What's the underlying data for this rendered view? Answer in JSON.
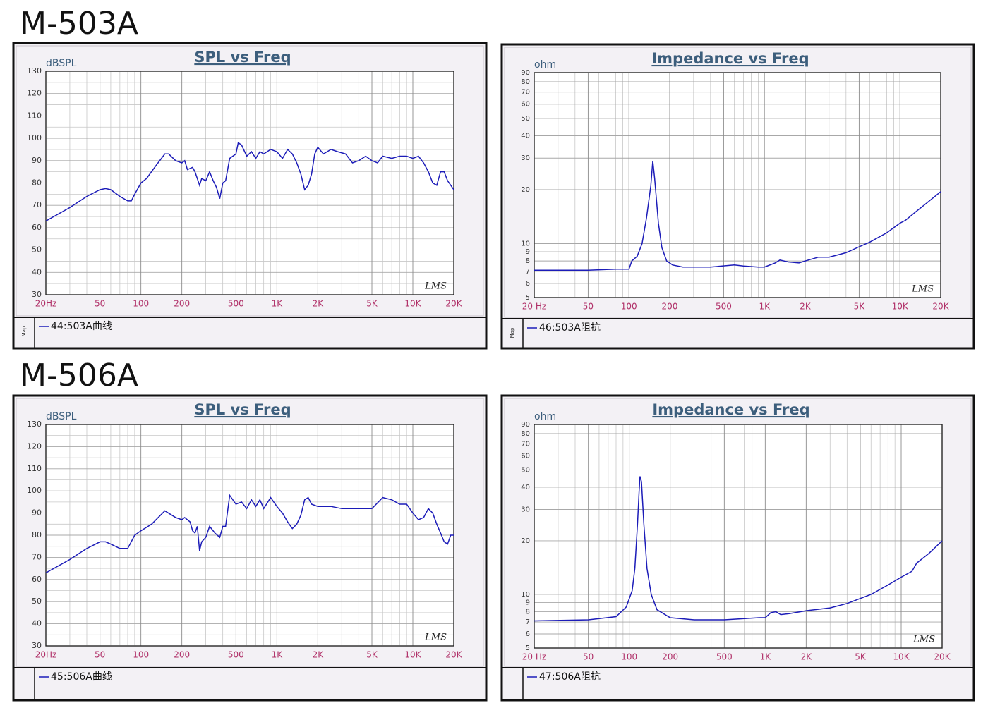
{
  "headings": [
    "M-503A",
    "M-506A"
  ],
  "chart_data": [
    {
      "type": "line",
      "title": "SPL vs Freq",
      "y_label": "dBSPL",
      "watermark": "LMS",
      "legend_tag": "Map",
      "x_scale": "log",
      "y_scale": "linear",
      "grid": true,
      "xlim": [
        20,
        20000
      ],
      "ylim": [
        30,
        130
      ],
      "xticks": [
        {
          "value": 20,
          "label": "20Hz"
        },
        50,
        100,
        200,
        500,
        {
          "value": 1000,
          "label": "1K"
        },
        {
          "value": 2000,
          "label": "2K"
        },
        {
          "value": 5000,
          "label": "5K"
        },
        {
          "value": 10000,
          "label": "10K"
        },
        {
          "value": 20000,
          "label": "20K"
        }
      ],
      "xgrid": [
        30,
        40,
        60,
        70,
        80,
        90,
        300,
        400,
        600,
        700,
        800,
        900,
        3000,
        4000,
        6000,
        7000,
        8000,
        9000
      ],
      "yticks": [
        30,
        40,
        50,
        60,
        70,
        80,
        90,
        100,
        110,
        120,
        130
      ],
      "ygrid": [
        35,
        45,
        55,
        65,
        75,
        85,
        95,
        105,
        115,
        125
      ],
      "x": [
        20,
        30,
        40,
        50,
        55,
        60,
        70,
        80,
        85,
        90,
        100,
        110,
        130,
        150,
        160,
        180,
        200,
        210,
        220,
        240,
        250,
        270,
        280,
        300,
        320,
        340,
        360,
        380,
        400,
        420,
        450,
        500,
        520,
        550,
        600,
        650,
        700,
        750,
        800,
        900,
        1000,
        1100,
        1200,
        1300,
        1400,
        1500,
        1600,
        1700,
        1800,
        1900,
        2000,
        2200,
        2500,
        2800,
        3200,
        3600,
        4000,
        4500,
        5000,
        5500,
        6000,
        7000,
        8000,
        9000,
        10000,
        11000,
        12000,
        13000,
        14000,
        15000,
        16000,
        17000,
        18000,
        19000,
        20000
      ],
      "series": [
        {
          "name": "44:503A曲线",
          "color": "#1c1cb8",
          "values": [
            63,
            69,
            74,
            77,
            77.5,
            77,
            74,
            72,
            72,
            75,
            80,
            82,
            88,
            93,
            93,
            90,
            89,
            90,
            86,
            87,
            85,
            79,
            82,
            81,
            85,
            81,
            78,
            73,
            80,
            81,
            91,
            93,
            98,
            97,
            92,
            94,
            91,
            94,
            93,
            95,
            94,
            91,
            95,
            93,
            89,
            84,
            77,
            79,
            84,
            93,
            96,
            93,
            95,
            94,
            93,
            89,
            90,
            92,
            90,
            89,
            92,
            91,
            92,
            92,
            91,
            92,
            89,
            85,
            80,
            79,
            85,
            85,
            81,
            79,
            77
          ]
        }
      ]
    },
    {
      "type": "line",
      "title": "Impedance vs Freq",
      "y_label": "ohm",
      "watermark": "LMS",
      "legend_tag": "Map",
      "x_scale": "log",
      "y_scale": "log",
      "grid": true,
      "xlim": [
        20,
        20000
      ],
      "ylim": [
        5,
        90
      ],
      "xticks": [
        {
          "value": 20,
          "label": "20 Hz"
        },
        50,
        100,
        200,
        500,
        {
          "value": 1000,
          "label": "1K"
        },
        {
          "value": 2000,
          "label": "2K"
        },
        {
          "value": 5000,
          "label": "5K"
        },
        {
          "value": 10000,
          "label": "10K"
        },
        {
          "value": 20000,
          "label": "20K"
        }
      ],
      "xgrid": [
        30,
        40,
        60,
        70,
        80,
        90,
        300,
        400,
        600,
        700,
        800,
        900,
        3000,
        4000,
        6000,
        7000,
        8000,
        9000
      ],
      "yticks": [
        5,
        6,
        7,
        8,
        9,
        10,
        20,
        30,
        40,
        50,
        60,
        70,
        80,
        90
      ],
      "ygrid": [],
      "x": [
        20,
        50,
        80,
        100,
        105,
        115,
        125,
        135,
        145,
        150,
        155,
        165,
        175,
        190,
        210,
        250,
        400,
        600,
        700,
        900,
        1000,
        1200,
        1300,
        1500,
        1800,
        2000,
        2500,
        3000,
        4000,
        5000,
        6000,
        8000,
        10000,
        11000,
        13000,
        16000,
        20000
      ],
      "series": [
        {
          "name": "46:503A阻抗",
          "color": "#1c1cb8",
          "values": [
            7.1,
            7.1,
            7.2,
            7.2,
            8.0,
            8.5,
            10,
            14,
            21,
            29,
            23,
            13,
            9.5,
            8,
            7.6,
            7.4,
            7.4,
            7.6,
            7.5,
            7.4,
            7.4,
            7.8,
            8.1,
            7.9,
            7.8,
            8.0,
            8.4,
            8.4,
            8.9,
            9.6,
            10.2,
            11.5,
            13,
            13.5,
            15,
            17,
            19.5
          ]
        }
      ]
    },
    {
      "type": "line",
      "title": "SPL vs Freq",
      "y_label": "dBSPL",
      "watermark": "LMS",
      "x_scale": "log",
      "y_scale": "linear",
      "grid": true,
      "xlim": [
        20,
        20000
      ],
      "ylim": [
        30,
        130
      ],
      "xticks": [
        {
          "value": 20,
          "label": "20Hz"
        },
        50,
        100,
        200,
        500,
        {
          "value": 1000,
          "label": "1K"
        },
        {
          "value": 2000,
          "label": "2K"
        },
        {
          "value": 5000,
          "label": "5K"
        },
        {
          "value": 10000,
          "label": "10K"
        },
        {
          "value": 20000,
          "label": "20K"
        }
      ],
      "xgrid": [
        30,
        40,
        60,
        70,
        80,
        90,
        300,
        400,
        600,
        700,
        800,
        900,
        3000,
        4000,
        6000,
        7000,
        8000,
        9000
      ],
      "yticks": [
        30,
        40,
        50,
        60,
        70,
        80,
        90,
        100,
        110,
        120,
        130
      ],
      "ygrid": [
        35,
        45,
        55,
        65,
        75,
        85,
        95,
        105,
        115,
        125
      ],
      "x": [
        20,
        30,
        40,
        50,
        55,
        60,
        70,
        80,
        90,
        100,
        120,
        150,
        180,
        200,
        210,
        230,
        240,
        250,
        260,
        270,
        280,
        300,
        320,
        350,
        380,
        400,
        420,
        450,
        500,
        550,
        600,
        650,
        700,
        750,
        800,
        900,
        1000,
        1100,
        1200,
        1300,
        1400,
        1500,
        1600,
        1700,
        1800,
        2000,
        2500,
        3000,
        3500,
        4000,
        5000,
        6000,
        7000,
        8000,
        9000,
        10000,
        11000,
        12000,
        13000,
        14000,
        15000,
        16000,
        17000,
        18000,
        19000,
        20000
      ],
      "series": [
        {
          "name": "45:506A曲线",
          "color": "#1c1cb8",
          "values": [
            63,
            69,
            74,
            77,
            77,
            76,
            74,
            74,
            80,
            82,
            85,
            91,
            88,
            87,
            88,
            86,
            82,
            81,
            84,
            73,
            77,
            79,
            84,
            81,
            79,
            84,
            84,
            98,
            94,
            95,
            92,
            96,
            93,
            96,
            92,
            97,
            93,
            90,
            86,
            83,
            85,
            89,
            96,
            97,
            94,
            93,
            93,
            92,
            92,
            92,
            92,
            97,
            96,
            94,
            94,
            90,
            87,
            88,
            92,
            90,
            85,
            81,
            77,
            76,
            80,
            80
          ]
        }
      ]
    },
    {
      "type": "line",
      "title": "Impedance vs Freq",
      "y_label": "ohm",
      "watermark": "LMS",
      "x_scale": "log",
      "y_scale": "log",
      "grid": true,
      "xlim": [
        20,
        20000
      ],
      "ylim": [
        5,
        90
      ],
      "xticks": [
        {
          "value": 20,
          "label": "20 Hz"
        },
        50,
        100,
        200,
        500,
        {
          "value": 1000,
          "label": "1K"
        },
        {
          "value": 2000,
          "label": "2K"
        },
        {
          "value": 5000,
          "label": "5K"
        },
        {
          "value": 10000,
          "label": "10K"
        },
        {
          "value": 20000,
          "label": "20K"
        }
      ],
      "xgrid": [
        30,
        40,
        60,
        70,
        80,
        90,
        300,
        400,
        600,
        700,
        800,
        900,
        3000,
        4000,
        6000,
        7000,
        8000,
        9000
      ],
      "yticks": [
        5,
        6,
        7,
        8,
        9,
        10,
        20,
        30,
        40,
        50,
        60,
        70,
        80,
        90
      ],
      "ygrid": [],
      "x": [
        20,
        50,
        80,
        95,
        105,
        110,
        115,
        118,
        120,
        123,
        128,
        135,
        145,
        160,
        200,
        300,
        500,
        900,
        1000,
        1100,
        1200,
        1300,
        1500,
        2000,
        3000,
        4000,
        6000,
        8000,
        10000,
        12000,
        13000,
        16000,
        20000
      ],
      "series": [
        {
          "name": "47:506A阻抗",
          "color": "#1c1cb8",
          "values": [
            7.1,
            7.2,
            7.5,
            8.5,
            10.5,
            14,
            25,
            37,
            46,
            43,
            25,
            14,
            10,
            8.2,
            7.4,
            7.2,
            7.2,
            7.4,
            7.4,
            7.9,
            8.0,
            7.7,
            7.8,
            8.1,
            8.4,
            8.9,
            10,
            11.3,
            12.5,
            13.5,
            15,
            17,
            20
          ]
        }
      ]
    }
  ]
}
